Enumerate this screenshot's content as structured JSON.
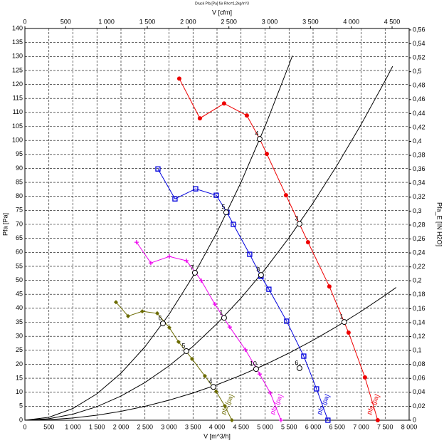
{
  "chart_data": {
    "type": "fan-curve",
    "title": "Druck Pfa [Pa] für Rho=1,2kg/m^3",
    "x_label": "V [m^3/h]",
    "x2_label": "V [cfm]",
    "y_label": "Pfa [Pa]",
    "y2_label": "Pfa_E [IN H2O]",
    "xlim": [
      0,
      8000
    ],
    "ylim": [
      0,
      140
    ],
    "x2lim": [
      0,
      4709
    ],
    "y2lim": [
      0,
      0.562
    ],
    "grid": true,
    "xticks": [
      0,
      500,
      {
        "value": 1000,
        "label": "1 000"
      },
      {
        "value": 1500,
        "label": "1 500"
      },
      {
        "value": 2000,
        "label": "2 000"
      },
      {
        "value": 2500,
        "label": "2 500"
      },
      {
        "value": 3000,
        "label": "3 000"
      },
      {
        "value": 3500,
        "label": "3 500"
      },
      {
        "value": 4000,
        "label": "4 000"
      },
      {
        "value": 4500,
        "label": "4 500"
      },
      {
        "value": 5000,
        "label": "5 000"
      },
      {
        "value": 5500,
        "label": "5 500"
      },
      {
        "value": 6000,
        "label": "6 000"
      },
      {
        "value": 6500,
        "label": "6 500"
      },
      {
        "value": 7000,
        "label": "7 000"
      },
      {
        "value": 7500,
        "label": "7 500"
      },
      {
        "value": 8000,
        "label": "8 000"
      }
    ],
    "x2ticks": [
      0,
      500,
      {
        "value": 1000,
        "label": "1 000"
      },
      {
        "value": 1500,
        "label": "1 500"
      },
      {
        "value": 2000,
        "label": "2 000"
      },
      {
        "value": 2500,
        "label": "2 500"
      },
      {
        "value": 3000,
        "label": "3 000"
      },
      {
        "value": 3500,
        "label": "3 500"
      },
      {
        "value": 4000,
        "label": "4 000"
      },
      {
        "value": 4500,
        "label": "4 500"
      }
    ],
    "yticks": [
      0,
      5,
      10,
      15,
      20,
      25,
      30,
      35,
      40,
      45,
      50,
      55,
      60,
      65,
      70,
      75,
      80,
      85,
      90,
      95,
      100,
      105,
      110,
      115,
      120,
      125,
      130,
      135,
      140
    ],
    "y2ticks": [
      0,
      {
        "value": 0.02,
        "label": "0,02"
      },
      {
        "value": 0.04,
        "label": "0,04"
      },
      {
        "value": 0.06,
        "label": "0,06"
      },
      {
        "value": 0.08,
        "label": "0,08"
      },
      {
        "value": 0.1,
        "label": "0,1"
      },
      {
        "value": 0.12,
        "label": "0,12"
      },
      {
        "value": 0.14,
        "label": "0,14"
      },
      {
        "value": 0.16,
        "label": "0,16"
      },
      {
        "value": 0.18,
        "label": "0,18"
      },
      {
        "value": 0.2,
        "label": "0,2"
      },
      {
        "value": 0.22,
        "label": "0,22"
      },
      {
        "value": 0.24,
        "label": "0,24"
      },
      {
        "value": 0.26,
        "label": "0,26"
      },
      {
        "value": 0.28,
        "label": "0,28"
      },
      {
        "value": 0.3,
        "label": "0,3"
      },
      {
        "value": 0.32,
        "label": "0,32"
      },
      {
        "value": 0.34,
        "label": "0,34"
      },
      {
        "value": 0.36,
        "label": "0,36"
      },
      {
        "value": 0.38,
        "label": "0,38"
      },
      {
        "value": 0.4,
        "label": "0,4"
      },
      {
        "value": 0.42,
        "label": "0,42"
      },
      {
        "value": 0.44,
        "label": "0,44"
      },
      {
        "value": 0.46,
        "label": "0,46"
      },
      {
        "value": 0.48,
        "label": "0,48"
      },
      {
        "value": 0.5,
        "label": "0,5"
      },
      {
        "value": 0.52,
        "label": "0,52"
      },
      {
        "value": 0.54,
        "label": "0,54"
      },
      {
        "value": 0.56,
        "label": "0,56"
      }
    ],
    "series": [
      {
        "name": "pfa [pa]",
        "color": "#ee0000",
        "marker": "circle",
        "x": [
          3214,
          3643,
          4147,
          4621,
          4888,
          5036,
          5436,
          5895,
          6339,
          6739,
          7080,
          7346
        ],
        "values": [
          122.1,
          107.9,
          113.2,
          108.9,
          100.5,
          95.2,
          80.4,
          63.6,
          47.8,
          31.3,
          15.3,
          0
        ]
      },
      {
        "name": "pfa [pa]",
        "color": "#0000dd",
        "marker": "square",
        "x": [
          2770,
          3125,
          3555,
          3984,
          4206,
          4340,
          4680,
          4917,
          5080,
          5450,
          5806,
          6072,
          6309
        ],
        "values": [
          89.8,
          79.1,
          82.7,
          80.4,
          74.3,
          70,
          59.3,
          51.4,
          46.8,
          35.4,
          22.9,
          11.2,
          0
        ]
      },
      {
        "name": "pfa [pa]",
        "color": "#ee00ee",
        "marker": "plus",
        "x": [
          2325,
          2621,
          3007,
          3362,
          3555,
          3673,
          3954,
          4265,
          4591,
          4888,
          5110,
          5332
        ],
        "values": [
          63.6,
          56.2,
          58.5,
          57,
          52.7,
          49.9,
          41.5,
          33.3,
          25.2,
          16.5,
          9.7,
          0
        ]
      },
      {
        "name": "pfa [pa]",
        "color": "#6b6b00",
        "marker": "diamond",
        "x": [
          1896,
          2148,
          2444,
          2755,
          3007,
          3199,
          3481,
          3747,
          3984,
          4162,
          4310
        ],
        "values": [
          42.2,
          37.2,
          38.9,
          38.2,
          33.1,
          28,
          21.9,
          15.8,
          10.2,
          5.1,
          0
        ]
      }
    ],
    "system_curves": [
      {
        "color": "#000000",
        "x": [
          0,
          500,
          1000,
          1500,
          2000,
          2500,
          3000,
          3500,
          4000,
          4500,
          5000,
          5500,
          5570
        ],
        "values": [
          0,
          1.05,
          4.2,
          9.45,
          16.8,
          26.25,
          37.8,
          51.45,
          67.2,
          85.05,
          105,
          127.05,
          130.3
        ]
      },
      {
        "color": "#000000",
        "x": [
          0,
          500,
          1000,
          1500,
          2000,
          2500,
          3000,
          3500,
          4000,
          4500,
          5000,
          5500,
          6000,
          6500,
          7000,
          7500,
          7657
        ],
        "values": [
          0,
          0.54,
          2.16,
          4.85,
          8.63,
          13.48,
          19.41,
          26.42,
          34.51,
          43.68,
          53.93,
          65.25,
          77.65,
          91.13,
          105.69,
          121.33,
          126.5
        ]
      },
      {
        "color": "#000000",
        "x": [
          0,
          500,
          1000,
          1500,
          2000,
          2500,
          3000,
          3500,
          4000,
          4500,
          5000,
          5500,
          6000,
          6500,
          7000,
          7500,
          7731
        ],
        "values": [
          0,
          0.2,
          0.79,
          1.79,
          3.18,
          4.96,
          7.15,
          9.73,
          12.7,
          16.08,
          19.85,
          24.02,
          28.58,
          33.55,
          38.91,
          44.66,
          47.46
        ]
      }
    ],
    "operating_points": {
      "x": [
        4888,
        5717,
        6650,
        4191,
        4917,
        5717,
        3540,
        4147,
        4814,
        2874,
        3362,
        3925
      ],
      "values": [
        100.5,
        70.2,
        35.1,
        74.3,
        51.9,
        18.6,
        52.7,
        36.6,
        18.3,
        34.6,
        24.7,
        11.9
      ],
      "labels": [
        "4",
        "3",
        "1",
        "5",
        "8",
        "6",
        "7",
        "1",
        "10",
        "6",
        "5",
        "4"
      ]
    }
  }
}
